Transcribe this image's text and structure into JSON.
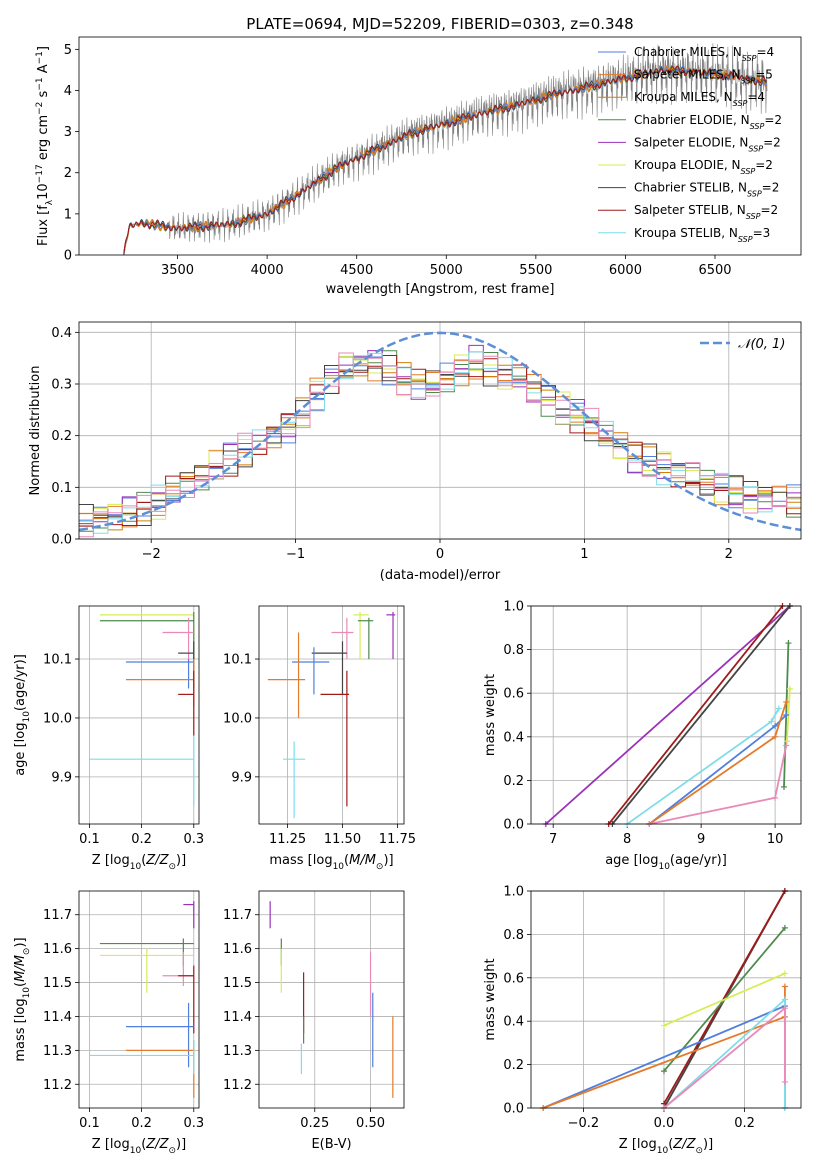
{
  "figure": {
    "title": "PLATE=0694, MJD=52209, FIBERID=0303, z=0.348"
  },
  "colors": {
    "chabrier_miles": "#4f7fdf",
    "salpeter_miles": "#e47b2b",
    "kroupa_miles": "#d57d0a",
    "chabrier_elodie": "#4e8a4e",
    "salpeter_elodie": "#9a32b8",
    "kroupa_elodie": "#d8ec55",
    "chabrier_stelib": "#444444",
    "salpeter_stelib": "#a11a1a",
    "kroupa_stelib": "#7fdde8",
    "pink": "#e98ab8",
    "data": "#808080",
    "gauss": "#5b8fd8"
  },
  "chart_data": [
    {
      "type": "line",
      "id": "spectrum",
      "xlabel": "wavelength [Angstrom, rest frame]",
      "ylabel_parts": [
        "Flux [f",
        "λ",
        "10",
        "−17",
        " erg cm",
        "−2",
        " s",
        "−1",
        " A",
        "−1",
        "]"
      ],
      "xlim": [
        2950,
        6980
      ],
      "ylim": [
        0,
        5.3
      ],
      "xticks": [
        3500,
        4000,
        4500,
        5000,
        5500,
        6000,
        6500
      ],
      "yticks": [
        0,
        1,
        2,
        3,
        4,
        5
      ],
      "continuum": {
        "x": [
          3200,
          3230,
          3300,
          3500,
          3800,
          4000,
          4200,
          4400,
          4600,
          4800,
          5000,
          5200,
          5400,
          5600,
          5800,
          6000,
          6200,
          6400,
          6600,
          6790
        ],
        "y": [
          0.0,
          0.7,
          0.78,
          0.65,
          0.75,
          1.0,
          1.55,
          2.15,
          2.55,
          2.95,
          3.2,
          3.45,
          3.65,
          3.9,
          4.1,
          4.3,
          4.5,
          4.45,
          4.35,
          4.2
        ]
      },
      "legend": [
        {
          "name": "Chabrier MILES",
          "n": "4"
        },
        {
          "name": "Salpeter MILES",
          "n": "5"
        },
        {
          "name": "Kroupa MILES",
          "n": "4"
        },
        {
          "name": "Chabrier ELODIE",
          "n": "2"
        },
        {
          "name": "Salpeter ELODIE",
          "n": "2"
        },
        {
          "name": "Kroupa ELODIE",
          "n": "2"
        },
        {
          "name": "Chabrier STELIB",
          "n": "2"
        },
        {
          "name": "Salpeter STELIB",
          "n": "2"
        },
        {
          "name": "Kroupa STELIB",
          "n": "3"
        }
      ],
      "legend_placement": "upper-right",
      "grid": false
    },
    {
      "type": "histogram",
      "id": "residuals",
      "xlabel": "(data-model)/error",
      "ylabel": "Normed distribution",
      "xlim": [
        -2.5,
        2.5
      ],
      "ylim": [
        0,
        0.42
      ],
      "xticks": [
        -2,
        -1,
        0,
        1,
        2
      ],
      "yticks": [
        0.0,
        0.1,
        0.2,
        0.3,
        0.4
      ],
      "legend": [
        "𝒩(0, 1)"
      ],
      "legend_placement": "upper-right",
      "grid": true,
      "bins": [
        -2.5,
        -2.4,
        -2.3,
        -2.2,
        -2.1,
        -2.0,
        -1.9,
        -1.8,
        -1.7,
        -1.6,
        -1.5,
        -1.4,
        -1.3,
        -1.2,
        -1.1,
        -1.0,
        -0.9,
        -0.8,
        -0.7,
        -0.6,
        -0.5,
        -0.4,
        -0.3,
        -0.2,
        -0.1,
        0.0,
        0.1,
        0.2,
        0.3,
        0.4,
        0.5,
        0.6,
        0.7,
        0.8,
        0.9,
        1.0,
        1.1,
        1.2,
        1.3,
        1.4,
        1.5,
        1.6,
        1.7,
        1.8,
        1.9,
        2.0,
        2.1,
        2.2,
        2.3,
        2.4,
        2.5
      ],
      "base_density": [
        0.035,
        0.04,
        0.045,
        0.05,
        0.06,
        0.07,
        0.09,
        0.11,
        0.12,
        0.14,
        0.155,
        0.17,
        0.18,
        0.2,
        0.22,
        0.24,
        0.28,
        0.31,
        0.33,
        0.34,
        0.34,
        0.33,
        0.31,
        0.3,
        0.3,
        0.31,
        0.33,
        0.34,
        0.33,
        0.32,
        0.31,
        0.29,
        0.27,
        0.25,
        0.24,
        0.22,
        0.2,
        0.18,
        0.16,
        0.15,
        0.14,
        0.13,
        0.12,
        0.11,
        0.1,
        0.09,
        0.085,
        0.08,
        0.075,
        0.07
      ]
    },
    {
      "type": "errorbar",
      "id": "age_vs_Z",
      "xlabel": "Z [log10(Z/Z⊙)]",
      "ylabel": "age  [log10(age/yr)]",
      "xlim": [
        0.08,
        0.31
      ],
      "ylim": [
        9.82,
        10.19
      ],
      "xticks": [
        0.1,
        0.2,
        0.3
      ],
      "yticks": [
        9.9,
        10.0,
        10.1
      ],
      "grid": true,
      "points": [
        {
          "c": "kroupa_elodie",
          "x": 0.3,
          "y": 10.175,
          "xlo": 0.12,
          "xhi": 0.3,
          "ylo": 10.09,
          "yhi": 10.18
        },
        {
          "c": "chabrier_elodie",
          "x": 0.3,
          "y": 10.165,
          "xlo": 0.12,
          "xhi": 0.3,
          "ylo": 10.1,
          "yhi": 10.18
        },
        {
          "c": "pink",
          "x": 0.29,
          "y": 10.145,
          "xlo": 0.24,
          "xhi": 0.3,
          "ylo": 10.1,
          "yhi": 10.17
        },
        {
          "c": "chabrier_stelib",
          "x": 0.3,
          "y": 10.11,
          "xlo": 0.27,
          "xhi": 0.3,
          "ylo": 10.05,
          "yhi": 10.13
        },
        {
          "c": "chabrier_miles",
          "x": 0.29,
          "y": 10.095,
          "xlo": 0.17,
          "xhi": 0.3,
          "ylo": 10.05,
          "yhi": 10.1
        },
        {
          "c": "salpeter_miles",
          "x": 0.3,
          "y": 10.065,
          "xlo": 0.17,
          "xhi": 0.3,
          "ylo": 10.02,
          "yhi": 10.1
        },
        {
          "c": "salpeter_stelib",
          "x": 0.3,
          "y": 10.04,
          "xlo": 0.27,
          "xhi": 0.3,
          "ylo": 9.97,
          "yhi": 10.08
        },
        {
          "c": "kroupa_stelib",
          "x": 0.3,
          "y": 9.93,
          "xlo": 0.1,
          "xhi": 0.3,
          "ylo": 9.85,
          "yhi": 9.97
        }
      ]
    },
    {
      "type": "errorbar",
      "id": "age_vs_mass",
      "xlabel": "mass [log10(M/M⊙)]",
      "ylabel": "",
      "xlim": [
        11.12,
        11.78
      ],
      "ylim": [
        9.82,
        10.19
      ],
      "xticks": [
        11.25,
        11.5,
        11.75
      ],
      "yticks": [
        9.9,
        10.0,
        10.1
      ],
      "grid": true,
      "points": [
        {
          "c": "kroupa_elodie",
          "x": 11.58,
          "y": 10.175,
          "xlo": 11.55,
          "xhi": 11.62,
          "ylo": 10.1,
          "yhi": 10.18
        },
        {
          "c": "chabrier_elodie",
          "x": 11.62,
          "y": 10.165,
          "xlo": 11.57,
          "xhi": 11.64,
          "ylo": 10.1,
          "yhi": 10.17
        },
        {
          "c": "salpeter_elodie",
          "x": 11.73,
          "y": 10.175,
          "xlo": 11.7,
          "xhi": 11.74,
          "ylo": 10.1,
          "yhi": 10.18
        },
        {
          "c": "pink",
          "x": 11.52,
          "y": 10.145,
          "xlo": 11.45,
          "xhi": 11.55,
          "ylo": 10.1,
          "yhi": 10.17
        },
        {
          "c": "chabrier_stelib",
          "x": 11.5,
          "y": 10.11,
          "xlo": 11.36,
          "xhi": 11.52,
          "ylo": 10.04,
          "yhi": 10.13
        },
        {
          "c": "chabrier_miles",
          "x": 11.37,
          "y": 10.095,
          "xlo": 11.27,
          "xhi": 11.44,
          "ylo": 10.04,
          "yhi": 10.12
        },
        {
          "c": "salpeter_miles",
          "x": 11.3,
          "y": 10.065,
          "xlo": 11.16,
          "xhi": 11.33,
          "ylo": 10.0,
          "yhi": 10.145
        },
        {
          "c": "salpeter_stelib",
          "x": 11.52,
          "y": 10.04,
          "xlo": 11.4,
          "xhi": 11.53,
          "ylo": 9.85,
          "yhi": 10.08
        },
        {
          "c": "kroupa_stelib",
          "x": 11.28,
          "y": 9.93,
          "xlo": 11.23,
          "xhi": 11.33,
          "ylo": 9.83,
          "yhi": 9.96
        }
      ]
    },
    {
      "type": "line",
      "id": "mw_vs_age",
      "xlabel": "age  [log10(age/yr)]",
      "ylabel": "mass weight",
      "xlim": [
        6.7,
        10.35
      ],
      "ylim": [
        0,
        1.0
      ],
      "xticks": [
        7,
        8,
        9,
        10
      ],
      "yticks": [
        0.0,
        0.2,
        0.4,
        0.6,
        0.8,
        1.0
      ],
      "grid": true,
      "series": [
        {
          "c": "salpeter_elodie",
          "x": [
            6.9,
            10.2
          ],
          "y": [
            0.0,
            1.0
          ]
        },
        {
          "c": "chabrier_stelib",
          "x": [
            7.8,
            10.2
          ],
          "y": [
            0.0,
            1.0
          ]
        },
        {
          "c": "salpeter_stelib",
          "x": [
            7.75,
            10.1
          ],
          "y": [
            0.0,
            1.0
          ]
        },
        {
          "c": "chabrier_elodie",
          "x": [
            10.12,
            10.18
          ],
          "y": [
            0.17,
            0.83
          ]
        },
        {
          "c": "kroupa_elodie",
          "x": [
            10.16,
            10.2
          ],
          "y": [
            0.38,
            0.62
          ]
        },
        {
          "c": "kroupa_stelib",
          "x": [
            8.0,
            9.95,
            10.05
          ],
          "y": [
            0.0,
            0.47,
            0.53
          ]
        },
        {
          "c": "chabrier_miles",
          "x": [
            8.3,
            10.0,
            10.15
          ],
          "y": [
            0.0,
            0.45,
            0.5
          ]
        },
        {
          "c": "salpeter_miles",
          "x": [
            8.3,
            10.0,
            10.15
          ],
          "y": [
            0.0,
            0.4,
            0.56
          ]
        },
        {
          "c": "pink",
          "x": [
            8.3,
            10.0,
            10.15
          ],
          "y": [
            0.0,
            0.12,
            0.36
          ]
        }
      ]
    },
    {
      "type": "errorbar",
      "id": "mass_vs_Z",
      "xlabel": "Z [log10(Z/Z⊙)]",
      "ylabel": "mass [log10(M/M⊙)]",
      "xlim": [
        0.08,
        0.31
      ],
      "ylim": [
        11.13,
        11.77
      ],
      "xticks": [
        0.1,
        0.2,
        0.3
      ],
      "yticks": [
        11.2,
        11.3,
        11.4,
        11.5,
        11.6,
        11.7
      ],
      "grid": true,
      "points": [
        {
          "c": "salpeter_elodie",
          "x": 0.3,
          "y": 11.73,
          "xlo": 0.28,
          "xhi": 0.3,
          "ylo": 11.66,
          "yhi": 11.74
        },
        {
          "c": "chabrier_elodie",
          "x": 0.28,
          "y": 11.615,
          "xlo": 0.12,
          "xhi": 0.3,
          "ylo": 11.55,
          "yhi": 11.63
        },
        {
          "c": "kroupa_elodie",
          "x": 0.21,
          "y": 11.58,
          "xlo": 0.12,
          "xhi": 0.3,
          "ylo": 11.47,
          "yhi": 11.6
        },
        {
          "c": "pink",
          "x": 0.28,
          "y": 11.52,
          "xlo": 0.24,
          "xhi": 0.3,
          "ylo": 11.49,
          "yhi": 11.59
        },
        {
          "c": "salpeter_stelib",
          "x": 0.3,
          "y": 11.52,
          "xlo": 0.27,
          "xhi": 0.3,
          "ylo": 11.35,
          "yhi": 11.55
        },
        {
          "c": "chabrier_miles",
          "x": 0.29,
          "y": 11.37,
          "xlo": 0.17,
          "xhi": 0.3,
          "ylo": 11.25,
          "yhi": 11.44
        },
        {
          "c": "salpeter_miles",
          "x": 0.3,
          "y": 11.3,
          "xlo": 0.17,
          "xhi": 0.3,
          "ylo": 11.16,
          "yhi": 11.33
        },
        {
          "c": "kroupa_stelib",
          "x": 0.3,
          "y": 11.285,
          "xlo": 0.1,
          "xhi": 0.3,
          "ylo": 11.23,
          "yhi": 11.33
        }
      ]
    },
    {
      "type": "errorbar",
      "id": "mass_vs_ebv",
      "xlabel": "E(B-V)",
      "ylabel": "",
      "xlim": [
        0.0,
        0.65
      ],
      "ylim": [
        11.13,
        11.77
      ],
      "xticks": [
        0.25,
        0.5
      ],
      "yticks": [
        11.2,
        11.3,
        11.4,
        11.5,
        11.6,
        11.7
      ],
      "grid": true,
      "points": [
        {
          "c": "salpeter_elodie",
          "x": 0.05,
          "y": 11.7,
          "ylo": 11.66,
          "yhi": 11.74
        },
        {
          "c": "chabrier_elodie",
          "x": 0.1,
          "y": 11.6,
          "ylo": 11.55,
          "yhi": 11.63
        },
        {
          "c": "kroupa_elodie",
          "x": 0.1,
          "y": 11.55,
          "ylo": 11.47,
          "yhi": 11.6
        },
        {
          "c": "salpeter_stelib",
          "x": 0.2,
          "y": 11.45,
          "ylo": 11.35,
          "yhi": 11.53
        },
        {
          "c": "chabrier_elodie",
          "x": 0.2,
          "y": 11.35,
          "ylo": 11.32,
          "yhi": 11.4
        },
        {
          "c": "kroupa_stelib",
          "x": 0.19,
          "y": 11.27,
          "ylo": 11.23,
          "yhi": 11.32
        },
        {
          "c": "pink",
          "x": 0.5,
          "y": 11.5,
          "ylo": 11.4,
          "yhi": 11.59
        },
        {
          "c": "chabrier_miles",
          "x": 0.51,
          "y": 11.4,
          "ylo": 11.25,
          "yhi": 11.47
        },
        {
          "c": "salpeter_miles",
          "x": 0.6,
          "y": 11.28,
          "ylo": 11.16,
          "yhi": 11.4
        }
      ]
    },
    {
      "type": "line",
      "id": "mw_vs_Z",
      "xlabel": "Z [log10(Z/Z⊙)]",
      "ylabel": "mass weight",
      "xlim": [
        -0.33,
        0.34
      ],
      "ylim": [
        0,
        1.0
      ],
      "xticks": [
        -0.2,
        0.0,
        0.2
      ],
      "yticks": [
        0.0,
        0.2,
        0.4,
        0.6,
        0.8,
        1.0
      ],
      "grid": true,
      "series": [
        {
          "c": "chabrier_stelib",
          "x": [
            0.0,
            0.3
          ],
          "y": [
            0.0,
            1.0
          ]
        },
        {
          "c": "salpeter_stelib",
          "x": [
            0.0,
            0.3
          ],
          "y": [
            0.02,
            1.0
          ]
        },
        {
          "c": "chabrier_elodie",
          "x": [
            0.0,
            0.3
          ],
          "y": [
            0.17,
            0.83
          ]
        },
        {
          "c": "kroupa_elodie",
          "x": [
            0.0,
            0.3
          ],
          "y": [
            0.38,
            0.62
          ]
        },
        {
          "c": "chabrier_miles",
          "x": [
            -0.3,
            0.3,
            0.3
          ],
          "y": [
            0.0,
            0.47,
            0.0
          ]
        },
        {
          "c": "salpeter_miles",
          "x": [
            -0.3,
            0.3,
            0.3
          ],
          "y": [
            0.0,
            0.42,
            0.56
          ]
        },
        {
          "c": "kroupa_stelib",
          "x": [
            0.0,
            0.3,
            0.3
          ],
          "y": [
            0.0,
            0.5,
            0.0
          ]
        },
        {
          "c": "pink",
          "x": [
            0.0,
            0.3,
            0.3
          ],
          "y": [
            0.0,
            0.46,
            0.12
          ]
        }
      ]
    }
  ]
}
